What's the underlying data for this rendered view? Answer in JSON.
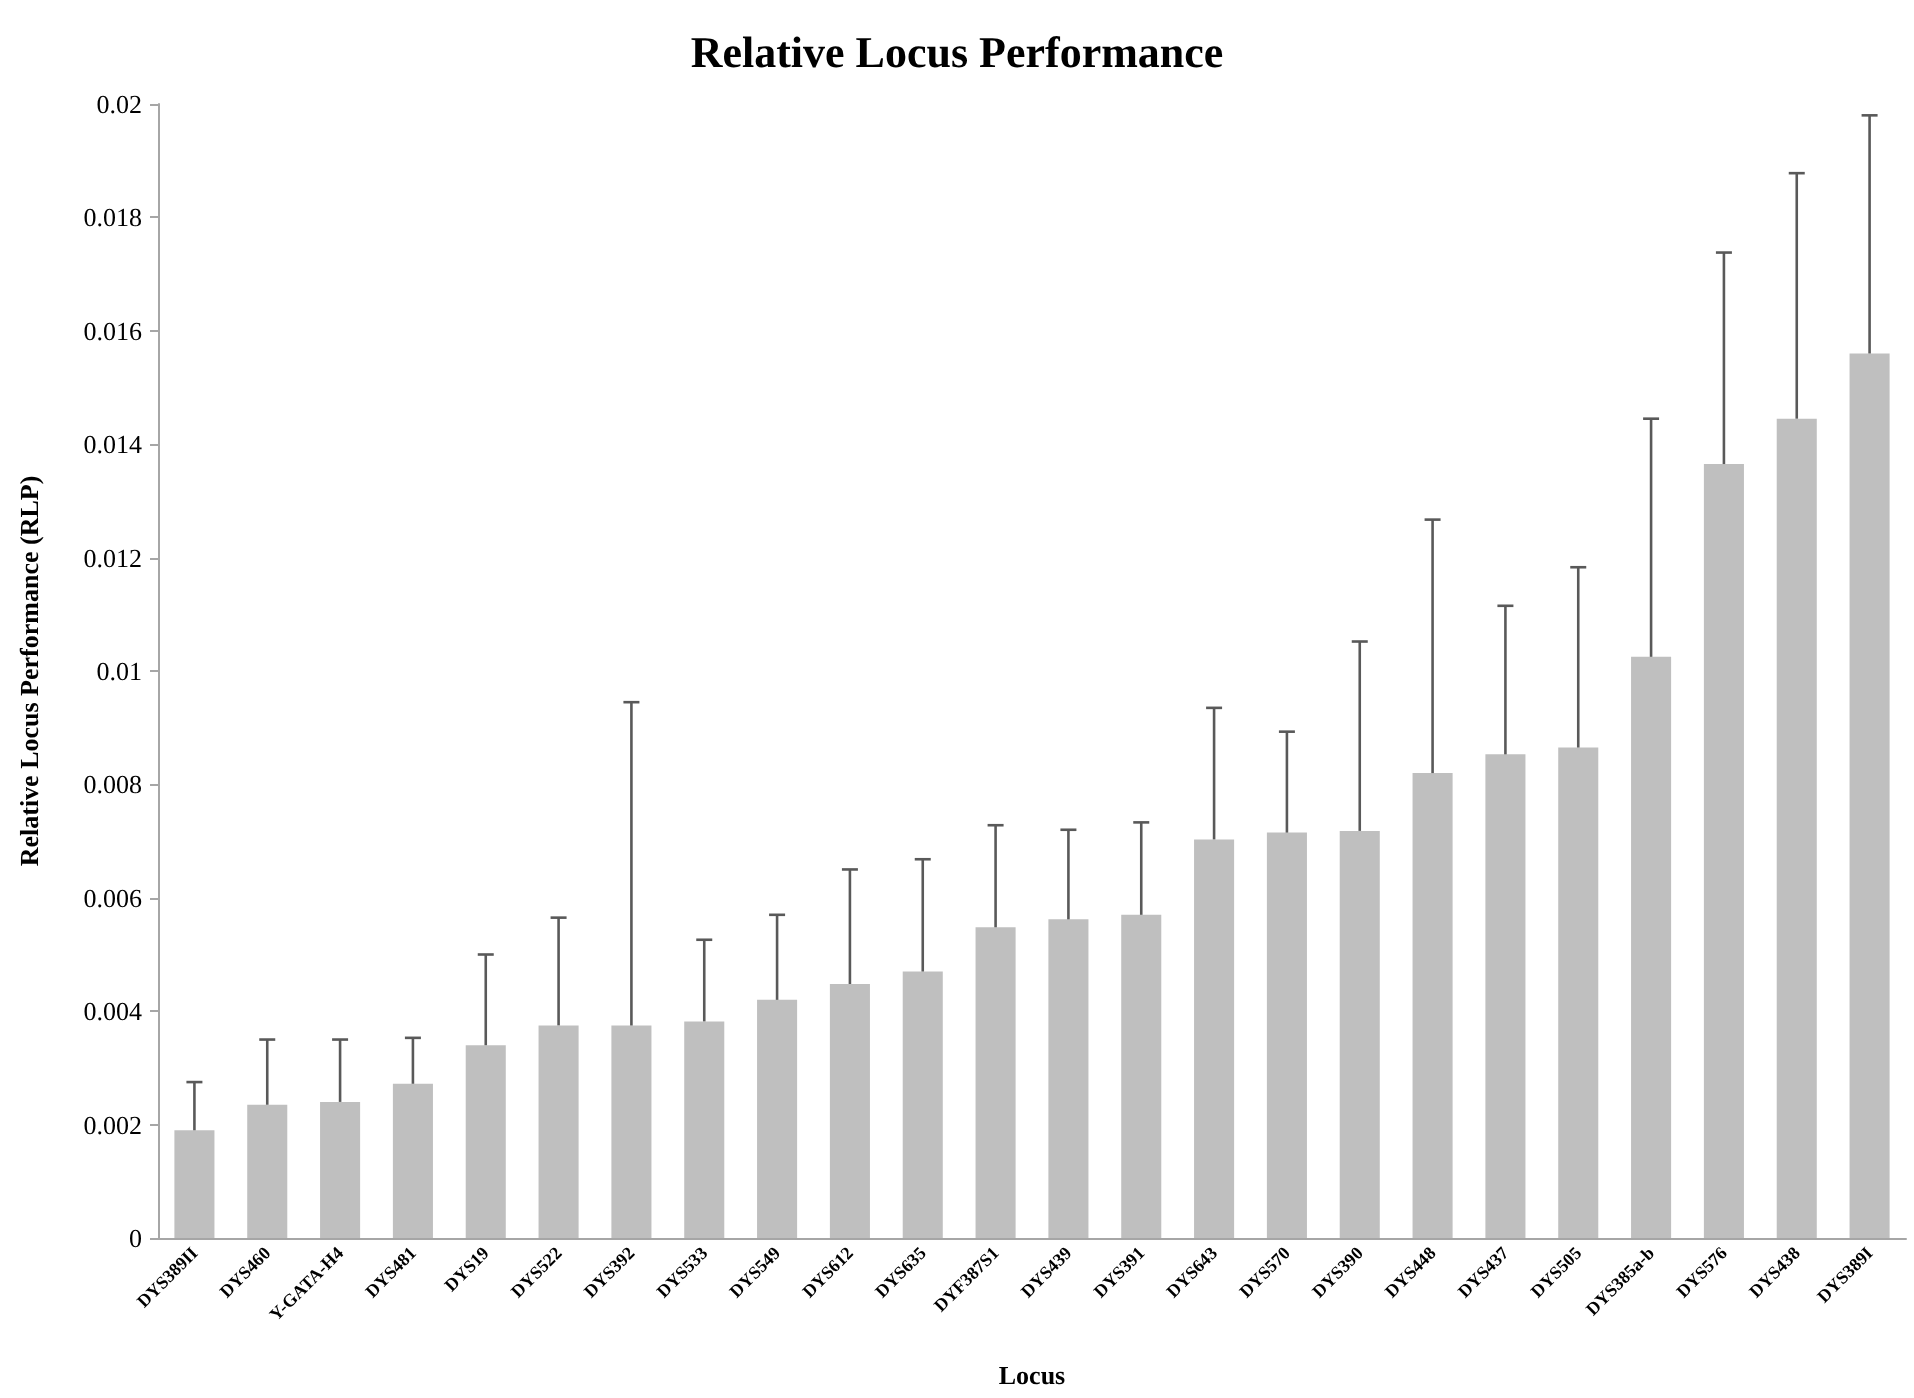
{
  "chart_data": {
    "type": "bar",
    "title": "Relative Locus Performance",
    "xlabel": "Locus",
    "ylabel": "Relative Locus Performance (RLP)",
    "categories": [
      "DYS389II",
      "DYS460",
      "Y-GATA-H4",
      "DYS481",
      "DYS19",
      "DYS522",
      "DYS392",
      "DYS533",
      "DYS549",
      "DYS612",
      "DYS635",
      "DYF387S1",
      "DYS439",
      "DYS391",
      "DYS643",
      "DYS570",
      "DYS390",
      "DYS448",
      "DYS437",
      "DYS505",
      "DYS385a-b",
      "DYS576",
      "DYS438",
      "DYS389I"
    ],
    "values": [
      0.0019,
      0.00235,
      0.0024,
      0.00272,
      0.0034,
      0.00375,
      0.00375,
      0.00382,
      0.0042,
      0.00448,
      0.0047,
      0.00548,
      0.00562,
      0.0057,
      0.00703,
      0.00715,
      0.00718,
      0.0082,
      0.00853,
      0.00865,
      0.01025,
      0.01365,
      0.01445,
      0.0156
    ],
    "errors": [
      [
        0.0019,
        0.00275
      ],
      [
        0.00235,
        0.0035
      ],
      [
        0.0024,
        0.0035
      ],
      [
        0.00272,
        0.00353
      ],
      [
        0.0034,
        0.005
      ],
      [
        0.00375,
        0.00565
      ],
      [
        0.00375,
        0.00945
      ],
      [
        0.00382,
        0.00526
      ],
      [
        0.0042,
        0.0057
      ],
      [
        0.00448,
        0.0065
      ],
      [
        0.0047,
        0.00668
      ],
      [
        0.00548,
        0.00728
      ],
      [
        0.00562,
        0.0072
      ],
      [
        0.0057,
        0.00733
      ],
      [
        0.00703,
        0.00935
      ],
      [
        0.00715,
        0.00893
      ],
      [
        0.00718,
        0.01052
      ],
      [
        0.0082,
        0.01267
      ],
      [
        0.00853,
        0.01115
      ],
      [
        0.00865,
        0.01183
      ],
      [
        0.01025,
        0.01445
      ],
      [
        0.01365,
        0.01738
      ],
      [
        0.01445,
        0.01878
      ],
      [
        0.0156,
        0.0198
      ]
    ],
    "color": "#bfbfbf",
    "ylim": [
      0,
      0.02
    ],
    "yticks": [
      0,
      0.002,
      0.004,
      0.006,
      0.008,
      0.01,
      0.012,
      0.014,
      0.016,
      0.018,
      0.02
    ],
    "grid": false
  }
}
